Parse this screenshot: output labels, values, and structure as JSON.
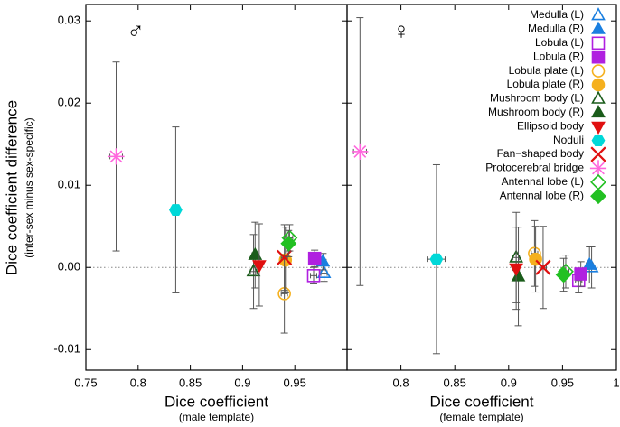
{
  "chart_data": {
    "type": "scatter",
    "y_label": "Dice coefficient difference",
    "y_sublabel": "(inter-sex minus sex-specific)",
    "ylim": [
      -0.0125,
      0.032
    ],
    "yticks": [
      -0.01,
      {
        "value": 0,
        "label": "0.00"
      },
      0.01,
      0.02,
      0.03
    ],
    "hline": 0,
    "panels": [
      {
        "symbol": "♂",
        "x_label": "Dice coefficient",
        "x_sublabel": "(male template)",
        "xlim": [
          0.75,
          1.0
        ],
        "xticks": [
          0.75,
          0.8,
          0.85,
          0.9,
          0.95
        ]
      },
      {
        "symbol": "♀",
        "x_label": "Dice coefficient",
        "x_sublabel": "(female template)",
        "xlim": [
          0.75,
          1.0
        ],
        "xticks": [
          0.8,
          0.85,
          0.9,
          0.95,
          1
        ]
      }
    ],
    "legend": "upper right",
    "series": [
      {
        "name": "Medulla (L)",
        "color": "#1a7fe0",
        "marker": "triangle",
        "filled": false,
        "x": [
          0.978,
          0.977
        ],
        "y": [
          -0.0007,
          0.0
        ],
        "xerr": [
          0.003,
          0.003
        ],
        "yerr": [
          0.001,
          0.0025
        ]
      },
      {
        "name": "Medulla (R)",
        "color": "#1a7fe0",
        "marker": "triangle",
        "filled": true,
        "x": [
          0.977,
          0.975
        ],
        "y": [
          0.0007,
          0.0003
        ],
        "xerr": [
          0.003,
          0.003
        ],
        "yerr": [
          0.001,
          0.0022
        ]
      },
      {
        "name": "Lobula (L)",
        "color": "#b020e0",
        "marker": "square",
        "filled": false,
        "x": [
          0.968,
          0.965
        ],
        "y": [
          -0.001,
          -0.0016
        ],
        "xerr": [
          0.003,
          0.003
        ],
        "yerr": [
          0.001,
          0.0015
        ]
      },
      {
        "name": "Lobula (R)",
        "color": "#b020e0",
        "marker": "square",
        "filled": true,
        "x": [
          0.969,
          0.967
        ],
        "y": [
          0.0011,
          -0.0008
        ],
        "xerr": [
          0.003,
          0.003
        ],
        "yerr": [
          0.001,
          0.0015
        ]
      },
      {
        "name": "Lobula plate (L)",
        "color": "#f5b01e",
        "marker": "circle",
        "filled": false,
        "x": [
          0.94,
          0.924
        ],
        "y": [
          -0.0032,
          0.0017
        ],
        "xerr": [
          0.003,
          0.003
        ],
        "yerr": [
          0.0048,
          0.004
        ]
      },
      {
        "name": "Lobula plate (R)",
        "color": "#f5b01e",
        "marker": "circle",
        "filled": true,
        "x": [
          0.941,
          0.925
        ],
        "y": [
          0.0009,
          0.001
        ],
        "xerr": [
          0.003,
          0.003
        ],
        "yerr": [
          0.004,
          0.004
        ]
      },
      {
        "name": "Mushroom body (L)",
        "color": "#1a5c1a",
        "marker": "triangle",
        "filled": false,
        "x": [
          0.9105,
          0.907
        ],
        "y": [
          -0.0005,
          0.0012
        ],
        "xerr": [
          0.003,
          0.003
        ],
        "yerr": [
          0.0045,
          0.0055
        ]
      },
      {
        "name": "Mushroom body (R)",
        "color": "#1a5c1a",
        "marker": "triangle",
        "filled": true,
        "x": [
          0.912,
          0.909
        ],
        "y": [
          0.0015,
          -0.0011
        ],
        "xerr": [
          0.003,
          0.003
        ],
        "yerr": [
          0.004,
          0.006
        ]
      },
      {
        "name": "Ellipsoid body",
        "color": "#e01010",
        "marker": "triangle-down",
        "filled": true,
        "x": [
          0.916,
          0.907
        ],
        "y": [
          0.0003,
          -0.0001
        ],
        "xerr": [
          0.003,
          0.003
        ],
        "yerr": [
          0.005,
          0.005
        ]
      },
      {
        "name": "Noduli",
        "color": "#00d8d8",
        "marker": "hexagon",
        "filled": true,
        "x": [
          0.836,
          0.833
        ],
        "y": [
          0.007,
          0.001
        ],
        "xerr": [
          0.004,
          0.008
        ],
        "yerr": [
          0.0101,
          0.0115
        ]
      },
      {
        "name": "Fan−shaped body",
        "color": "#e01010",
        "marker": "x",
        "filled": false,
        "x": [
          0.94,
          0.932
        ],
        "y": [
          0.0012,
          0.0
        ],
        "xerr": [
          0.003,
          0.003
        ],
        "yerr": [
          0.004,
          0.005
        ]
      },
      {
        "name": "Protocerebral bridge",
        "color": "#ff66dd",
        "marker": "star",
        "filled": false,
        "x": [
          0.779,
          0.762
        ],
        "y": [
          0.0135,
          0.0141
        ],
        "xerr": [
          0.006,
          0.006
        ],
        "yerr": [
          0.0115,
          0.0163
        ]
      },
      {
        "name": "Antennal lobe (L)",
        "color": "#22c022",
        "marker": "diamond",
        "filled": false,
        "x": [
          0.945,
          0.953
        ],
        "y": [
          0.0036,
          -0.0005
        ],
        "xerr": [
          0.003,
          0.003
        ],
        "yerr": [
          0.0016,
          0.002
        ]
      },
      {
        "name": "Antennal lobe (R)",
        "color": "#22c022",
        "marker": "diamond",
        "filled": true,
        "x": [
          0.944,
          0.951
        ],
        "y": [
          0.0029,
          -0.0009
        ],
        "xerr": [
          0.003,
          0.003
        ],
        "yerr": [
          0.0016,
          0.002
        ]
      }
    ]
  }
}
